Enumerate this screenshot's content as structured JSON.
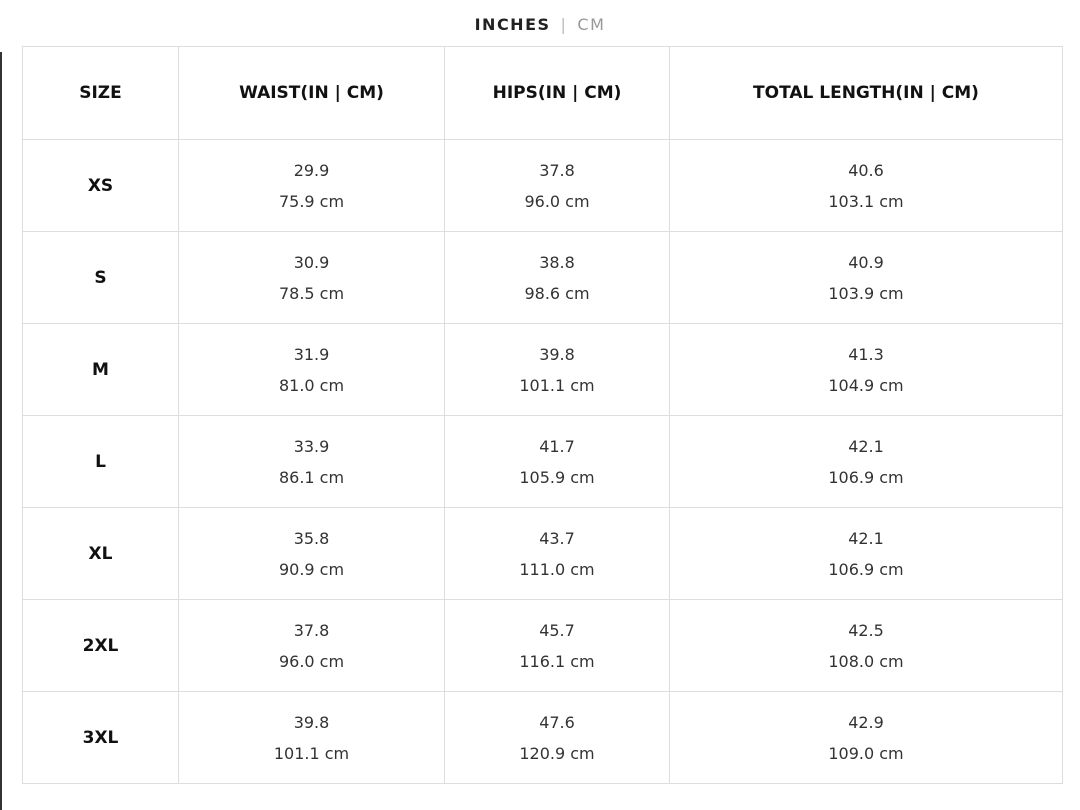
{
  "toggle": {
    "inches": "INCHES",
    "separator": "|",
    "cm": "CM"
  },
  "table": {
    "headers": [
      "SIZE",
      "WAIST(IN | CM)",
      "HIPS(IN | CM)",
      "TOTAL LENGTH(IN | CM)"
    ],
    "rows": [
      [
        "XS",
        [
          "29.9",
          "75.9 cm"
        ],
        [
          "37.8",
          "96.0 cm"
        ],
        [
          "40.6",
          "103.1 cm"
        ]
      ],
      [
        "S",
        [
          "30.9",
          "78.5 cm"
        ],
        [
          "38.8",
          "98.6 cm"
        ],
        [
          "40.9",
          "103.9 cm"
        ]
      ],
      [
        "M",
        [
          "31.9",
          "81.0 cm"
        ],
        [
          "39.8",
          "101.1 cm"
        ],
        [
          "41.3",
          "104.9 cm"
        ]
      ],
      [
        "L",
        [
          "33.9",
          "86.1 cm"
        ],
        [
          "41.7",
          "105.9 cm"
        ],
        [
          "42.1",
          "106.9 cm"
        ]
      ],
      [
        "XL",
        [
          "35.8",
          "90.9 cm"
        ],
        [
          "43.7",
          "111.0 cm"
        ],
        [
          "42.1",
          "106.9 cm"
        ]
      ],
      [
        "2XL",
        [
          "37.8",
          "96.0 cm"
        ],
        [
          "45.7",
          "116.1 cm"
        ],
        [
          "42.5",
          "108.0 cm"
        ]
      ],
      [
        "3XL",
        [
          "39.8",
          "101.1 cm"
        ],
        [
          "47.6",
          "120.9 cm"
        ],
        [
          "42.9",
          "109.0 cm"
        ]
      ]
    ]
  }
}
